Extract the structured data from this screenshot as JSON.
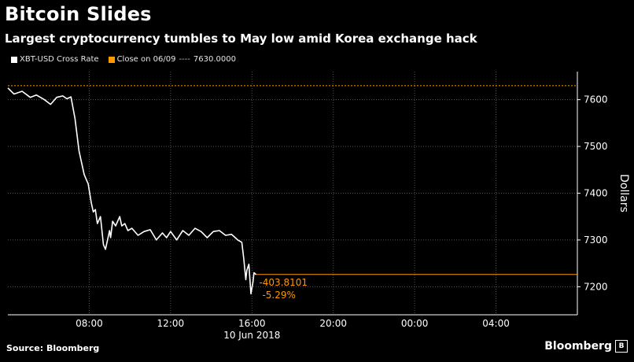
{
  "header": {
    "title": "Bitcoin Slides",
    "subtitle": "Largest cryptocurrency tumbles to May low amid Korea exchange hack"
  },
  "legend": {
    "series_label": "XBT-USD Cross Rate",
    "close_label": "Close on 06/09",
    "close_dashes": "----",
    "close_value": "7630.0000"
  },
  "footer": {
    "source": "Source: Bloomberg",
    "brand": "Bloomberg"
  },
  "colors": {
    "background": "#000000",
    "series": "#ffffff",
    "accent": "#ff9900",
    "grid": "#555555"
  },
  "chart_data": {
    "type": "line",
    "ylabel": "Dollars",
    "x_axis_date": "10 Jun 2018",
    "x_ticks": [
      "08:00",
      "12:00",
      "16:00",
      "20:00",
      "00:00",
      "04:00"
    ],
    "x_tick_hours": [
      8,
      12,
      16,
      20,
      24,
      28
    ],
    "xlim_hours": [
      4,
      32
    ],
    "y_ticks": [
      7200,
      7300,
      7400,
      7500,
      7600
    ],
    "ylim": [
      7140,
      7660
    ],
    "grid": true,
    "close_reference": 7630.0,
    "last_price_level": 7226.19,
    "change_label": "-403.8101",
    "change_pct_label": "-5.29%",
    "series": [
      {
        "x_hours": [
          4.0,
          4.3,
          4.7,
          5.1,
          5.4,
          5.8,
          6.1,
          6.4,
          6.7,
          6.9,
          7.1,
          7.3,
          7.5,
          7.6,
          7.75,
          7.85,
          7.95,
          8.1,
          8.2,
          8.3,
          8.4,
          8.55,
          8.7,
          8.8,
          8.9,
          9.0,
          9.05,
          9.15,
          9.3,
          9.5,
          9.6,
          9.75,
          9.9,
          10.1,
          10.4,
          10.7,
          11.0,
          11.3,
          11.6,
          11.8,
          12.0,
          12.3,
          12.6,
          12.9,
          13.2,
          13.5,
          13.8,
          14.1,
          14.4,
          14.7,
          15.0,
          15.3,
          15.5,
          15.6,
          15.7,
          15.75,
          15.85,
          15.95,
          16.05,
          16.1,
          16.2
        ],
        "values": [
          7625,
          7612,
          7618,
          7605,
          7610,
          7600,
          7590,
          7605,
          7608,
          7602,
          7606,
          7560,
          7490,
          7470,
          7440,
          7430,
          7420,
          7380,
          7360,
          7365,
          7335,
          7350,
          7290,
          7280,
          7300,
          7320,
          7305,
          7340,
          7330,
          7350,
          7330,
          7335,
          7320,
          7325,
          7310,
          7318,
          7322,
          7300,
          7315,
          7305,
          7318,
          7300,
          7320,
          7310,
          7325,
          7318,
          7305,
          7318,
          7320,
          7310,
          7312,
          7300,
          7295,
          7260,
          7215,
          7235,
          7248,
          7185,
          7210,
          7230,
          7226
        ]
      }
    ]
  }
}
